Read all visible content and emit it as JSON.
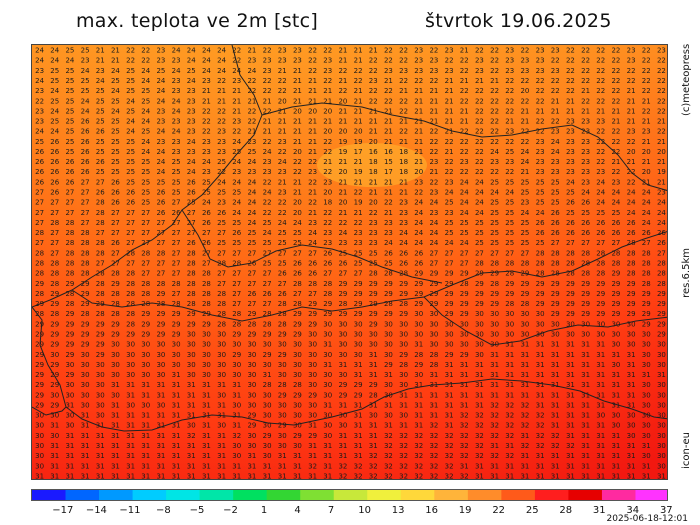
{
  "title": "max. teplota ve 2m [stc]",
  "date": "štvrtok 19.06.2025",
  "credit": "(c)meteopress",
  "resolution": "res.6.5km",
  "model": "icon-eu",
  "timestamp": "2025-06-18-12:01",
  "colorbar": {
    "labels": [
      "-17",
      "-14",
      "-11",
      "-8",
      "-5",
      "-2",
      "1",
      "4",
      "7",
      "10",
      "13",
      "16",
      "19",
      "22",
      "25",
      "28",
      "31",
      "34",
      "37"
    ],
    "colors": [
      "#1a1aff",
      "#0066ff",
      "#0099ff",
      "#00ccff",
      "#00e5e5",
      "#00e6a8",
      "#00e060",
      "#33d633",
      "#7fe033",
      "#c8e83a",
      "#f0f03c",
      "#ffd83a",
      "#ffb43a",
      "#ff8c2a",
      "#ff5a1a",
      "#ff1e1e",
      "#e60000",
      "#ff2aa0",
      "#ff33ff"
    ]
  },
  "map": {
    "columns": 42,
    "row_values": [
      "24 24 25 25 21 21 22 22 23 24 24 24 24 22 21 22 23 23 22 22 21 21 21 22 22 23 22 23 21 22 22 23 22 23 23 22 22 22 22 23 22 23",
      "24 24 24 23 21 21 22 22 23 23 24 24 24 22 23 23 23 23 22 23 21 21 22 22 22 23 23 22 22 23 22 23 23 23 22 22 22 22 22 23 22 22",
      "23 25 25 24 23 24 25 24 25 24 25 24 24 24 24 23 21 21 22 23 22 22 22 23 23 23 23 23 22 23 22 23 23 23 23 22 22 22 22 22 22 22",
      "24 25 25 25 24 25 25 24 24 23 24 23 22 23 22 22 22 21 21 22 21 22 23 21 22 22 22 21 21 21 21 22 22 22 22 22 22 22 22 22 22 22",
      "23 24 25 25 25 24 25 25 24 23 23 21 21 21 22 22 22 21 21 21 22 21 22 22 21 21 21 21 22 22 22 22 20 22 22 22 21 22 22 21 22 22",
      "22 25 25 24 25 25 24 25 24 24 23 21 21 21 21 21 20 21 21 21 20 21 22 22 22 21 21 21 22 22 22 22 22 22 21 21 22 22 22 21 21 22",
      "23 24 25 24 25 24 25 24 23 24 23 22 22 21 22 22 21 20 20 20 21 21 21 21 22 21 21 21 21 22 22 22 21 21 21 21 21 21 21 21 22 22",
      "23 25 25 26 25 25 24 24 23 23 23 22 22 23 22 21 21 21 21 21 21 21 21 21 21 21 21 21 21 22 22 21 21 22 22 23 23 23 21 21 21 21",
      "24 24 25 26 26 25 24 25 24 24 23 22 23 22 21 21 21 21 21 20 20 20 21 21 22 21 22 21 22 22 22 23 22 22 23 23 23 22 22 23 23 22",
      "25 26 25 26 25 25 25 24 23 23 24 23 23 24 23 22 23 21 21 22 19 19 20 21 21 21 22 22 22 22 22 22 22 23 24 23 23 22 22 22 21 21",
      "26 26 25 26 25 25 25 24 24 23 23 23 23 25 25 24 22 20 21 22 19 17 16 16 18 21 22 21 22 22 24 25 24 23 24 23 23 22 22 20 20 20",
      "26 26 26 26 26 25 25 25 24 25 24 24 25 24 24 23 24 22 22 21 21 21 18 15 18 21 23 22 23 22 23 23 24 23 23 23 23 22 21 21 21 21",
      "26 26 26 26 25 25 25 25 24 25 24 23 22 23 23 23 23 22 23 22 20 19 18 17 18 20 21 22 22 22 22 22 21 23 23 23 23 23 22 22 20 19",
      "26 26 26 27 27 26 25 25 25 25 26 25 24 24 24 22 21 21 22 23 21 21 21 21 21 23 22 23 24 24 25 25 25 25 25 24 23 24 23 22 21 21",
      "27 26 27 27 26 26 26 25 26 25 26 25 25 25 24 24 23 21 21 20 21 22 21 21 21 22 23 24 24 24 24 24 25 25 25 25 24 24 24 24 24 23",
      "27 27 27 27 28 26 26 25 26 27 25 24 23 24 24 22 22 20 22 18 20 19 20 22 23 24 24 25 24 24 25 25 23 25 25 26 26 24 24 24 24 24",
      "27 27 27 27 28 27 27 27 26 26 27 26 26 24 24 22 22 20 21 22 21 21 22 21 23 24 23 23 24 24 25 25 24 24 26 25 25 25 25 24 24 24",
      "27 28 28 27 28 27 27 27 27 27 27 26 25 25 24 25 24 24 23 22 22 22 23 23 23 24 24 25 25 25 25 25 25 26 26 26 26 26 26 26 24 24",
      "28 27 28 28 27 27 27 27 27 27 27 27 27 26 25 24 25 25 24 23 24 23 23 23 24 24 24 25 25 25 25 25 25 26 26 26 26 26 26 26 26 26",
      "27 27 28 28 28 26 27 27 27 27 26 26 25 25 25 25 25 25 24 23 23 23 23 24 24 24 24 24 24 25 25 25 25 25 27 27 27 27 27 28 27 26",
      "28 27 28 28 28 27 28 28 28 27 28 27 27 27 27 27 27 27 27 26 25 25 25 26 26 26 27 27 27 27 27 27 27 28 28 28 28 28 28 28 28 27",
      "28 28 28 28 27 27 27 27 27 27 28 27 28 28 26 25 25 26 26 26 26 25 25 25 26 26 27 27 27 28 28 28 28 28 28 28 28 28 28 28 28 28",
      "28 28 28 28 28 28 28 27 27 27 28 28 27 27 27 27 26 26 26 27 27 27 28 28 28 29 29 29 29 29 29 28 29 28 28 28 28 28 29 28 28 28",
      "29 28 29 29 28 29 28 28 28 28 28 28 27 27 27 27 27 28 28 28 29 29 29 29 29 29 29 29 28 29 28 29 29 29 29 29 29 29 29 29 28 28",
      "28 29 28 29 28 28 28 28 29 27 28 28 28 27 26 26 26 27 27 28 29 29 29 29 29 29 29 29 29 29 29 29 29 29 29 29 29 29 29 29 29 29",
      "29 29 28 29 29 28 28 28 28 28 28 28 28 27 27 27 28 28 29 29 28 29 29 28 28 29 29 29 29 29 29 28 28 29 29 29 29 29 29 29 29 29",
      "28 28 29 28 28 28 28 29 29 29 29 29 28 28 29 28 28 29 29 29 29 29 29 29 29 30 30 29 29 30 30 30 30 30 29 29 29 29 29 29 29 29",
      "29 29 29 29 29 29 28 29 29 29 29 29 28 28 28 28 28 29 29 30 30 30 29 30 30 30 30 30 30 30 30 30 30 30 30 30 30 30 30 30 29 29",
      "29 29 29 29 29 29 29 29 29 29 30 30 30 29 29 29 29 29 30 30 30 30 30 30 30 30 30 30 30 30 30 30 30 30 30 30 30 30 30 30 30 29",
      "29 29 29 29 29 30 30 30 30 30 30 30 30 30 30 30 30 30 30 31 30 30 30 30 30 31 30 30 30 30 30 31 31 31 31 31 31 31 30 30 30 30",
      "29 30 29 30 29 30 30 30 30 30 30 30 30 29 30 29 29 30 30 30 30 30 31 30 29 28 28 29 29 30 31 31 31 31 31 31 31 31 31 31 30 30",
      "29 29 30 30 30 30 30 30 30 30 30 30 30 30 30 30 30 30 30 31 31 31 31 29 28 29 28 31 31 31 31 31 31 31 31 31 31 31 30 31 30 30",
      "29 29 29 30 30 30 30 30 30 31 30 30 30 30 30 31 30 30 30 30 30 31 31 31 30 30 31 31 31 31 31 31 31 31 31 31 31 31 31 31 31 31",
      "29 29 30 30 30 31 31 31 31 31 31 31 31 31 30 28 28 28 30 30 29 29 29 30 30 31 31 31 31 31 31 31 31 31 31 31 31 31 31 31 30 30",
      "29 30 30 30 30 30 31 31 31 31 31 31 30 31 30 30 29 29 29 30 29 29 28 30 31 31 31 31 31 31 31 31 31 31 31 31 31 31 31 31 30 30",
      "29 29 31 30 30 31 30 30 30 31 31 31 31 30 30 30 30 30 30 31 31 31 31 31 31 31 31 31 31 31 32 32 32 31 31 31 31 31 31 31 30 30",
      "30 30 30 31 30 31 31 31 31 31 31 31 31 31 29 30 30 30 30 30 30 31 30 30 30 31 31 31 32 32 32 32 32 32 31 31 31 30 30 30 30 30",
      "30 31 30 31 31 31 31 31 31 31 30 31 30 31 29 30 29 30 31 30 30 31 31 31 31 31 32 31 32 32 32 32 32 32 31 31 31 31 30 30 30 30",
      "30 30 31 31 31 31 31 31 31 31 32 31 31 32 30 29 30 29 29 30 31 31 31 32 32 32 32 32 32 32 32 32 31 32 32 31 31 31 31 30 30 30",
      "30 31 31 31 31 31 31 31 31 31 31 31 31 30 30 30 30 30 31 31 31 31 31 32 32 32 32 32 32 32 31 31 32 32 32 32 31 31 31 31 31 30",
      "30 31 31 31 31 31 31 31 31 31 31 31 31 30 31 30 31 31 31 31 31 31 32 32 32 32 32 32 32 32 32 32 31 31 31 31 31 31 31 31 30 30",
      "30 31 31 31 31 31 31 31 31 31 31 31 31 31 31 31 31 31 32 31 32 32 32 32 32 32 32 32 31 31 31 31 31 31 31 31 31 31 31 31 31 30",
      "31 31 31 31 31 31 31 31 31 31 31 31 31 31 31 31 31 31 31 31 32 32 32 32 32 32 32 32 32 31 31 31 31 31 31 31 31 31 31 31 31 31"
    ]
  }
}
